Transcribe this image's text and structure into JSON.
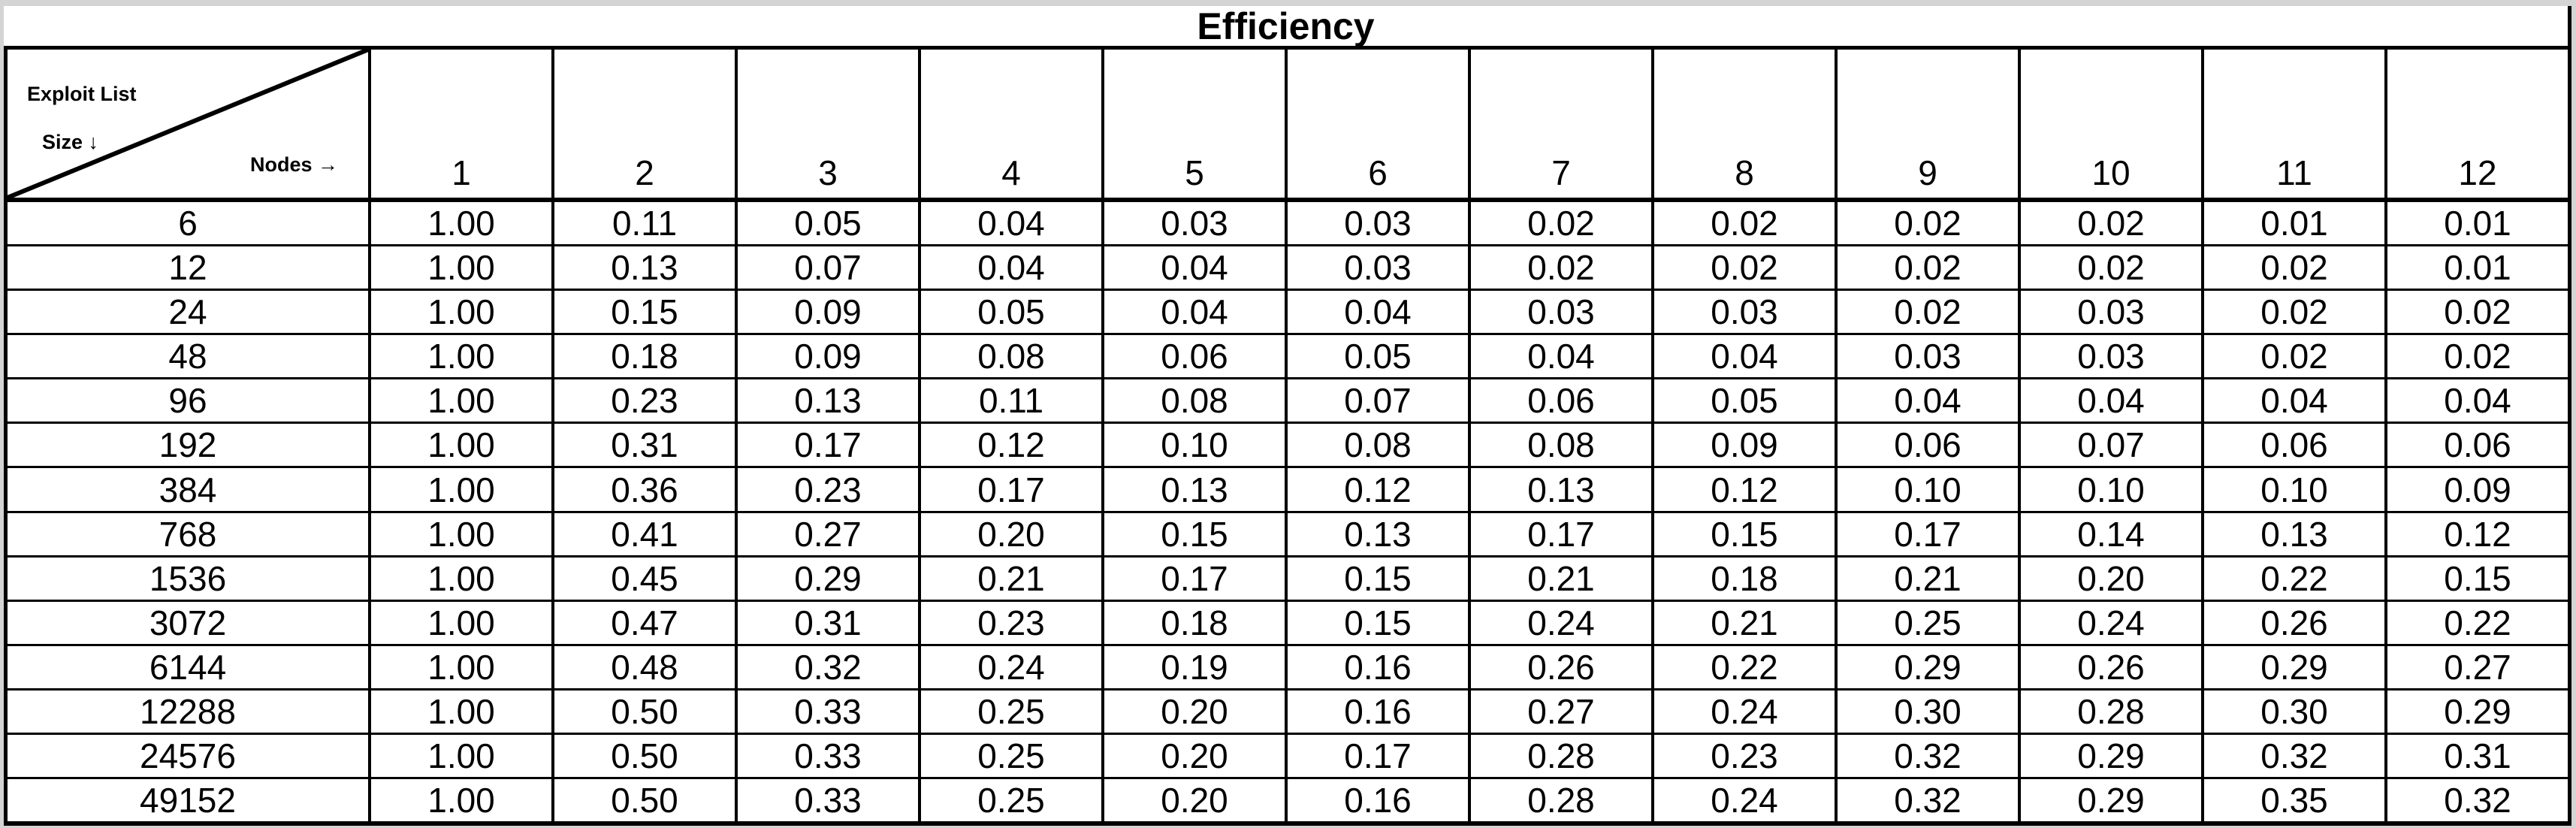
{
  "chart_data": {
    "type": "table",
    "title": "Efficiency",
    "corner": {
      "row_axis_line1": "Exploit List",
      "row_axis_line2": "Size ↓",
      "col_axis": "Nodes →"
    },
    "columns": [
      "1",
      "2",
      "3",
      "4",
      "5",
      "6",
      "7",
      "8",
      "9",
      "10",
      "11",
      "12"
    ],
    "row_header_meaning": "Exploit List Size",
    "row_labels": [
      "6",
      "12",
      "24",
      "48",
      "96",
      "192",
      "384",
      "768",
      "1536",
      "3072",
      "6144",
      "12288",
      "24576",
      "49152"
    ],
    "rows": [
      [
        "1.00",
        "0.11",
        "0.05",
        "0.04",
        "0.03",
        "0.03",
        "0.02",
        "0.02",
        "0.02",
        "0.02",
        "0.01",
        "0.01"
      ],
      [
        "1.00",
        "0.13",
        "0.07",
        "0.04",
        "0.04",
        "0.03",
        "0.02",
        "0.02",
        "0.02",
        "0.02",
        "0.02",
        "0.01"
      ],
      [
        "1.00",
        "0.15",
        "0.09",
        "0.05",
        "0.04",
        "0.04",
        "0.03",
        "0.03",
        "0.02",
        "0.03",
        "0.02",
        "0.02"
      ],
      [
        "1.00",
        "0.18",
        "0.09",
        "0.08",
        "0.06",
        "0.05",
        "0.04",
        "0.04",
        "0.03",
        "0.03",
        "0.02",
        "0.02"
      ],
      [
        "1.00",
        "0.23",
        "0.13",
        "0.11",
        "0.08",
        "0.07",
        "0.06",
        "0.05",
        "0.04",
        "0.04",
        "0.04",
        "0.04"
      ],
      [
        "1.00",
        "0.31",
        "0.17",
        "0.12",
        "0.10",
        "0.08",
        "0.08",
        "0.09",
        "0.06",
        "0.07",
        "0.06",
        "0.06"
      ],
      [
        "1.00",
        "0.36",
        "0.23",
        "0.17",
        "0.13",
        "0.12",
        "0.13",
        "0.12",
        "0.10",
        "0.10",
        "0.10",
        "0.09"
      ],
      [
        "1.00",
        "0.41",
        "0.27",
        "0.20",
        "0.15",
        "0.13",
        "0.17",
        "0.15",
        "0.17",
        "0.14",
        "0.13",
        "0.12"
      ],
      [
        "1.00",
        "0.45",
        "0.29",
        "0.21",
        "0.17",
        "0.15",
        "0.21",
        "0.18",
        "0.21",
        "0.20",
        "0.22",
        "0.15"
      ],
      [
        "1.00",
        "0.47",
        "0.31",
        "0.23",
        "0.18",
        "0.15",
        "0.24",
        "0.21",
        "0.25",
        "0.24",
        "0.26",
        "0.22"
      ],
      [
        "1.00",
        "0.48",
        "0.32",
        "0.24",
        "0.19",
        "0.16",
        "0.26",
        "0.22",
        "0.29",
        "0.26",
        "0.29",
        "0.27"
      ],
      [
        "1.00",
        "0.50",
        "0.33",
        "0.25",
        "0.20",
        "0.16",
        "0.27",
        "0.24",
        "0.30",
        "0.28",
        "0.30",
        "0.29"
      ],
      [
        "1.00",
        "0.50",
        "0.33",
        "0.25",
        "0.20",
        "0.17",
        "0.28",
        "0.23",
        "0.32",
        "0.29",
        "0.32",
        "0.31"
      ],
      [
        "1.00",
        "0.50",
        "0.33",
        "0.25",
        "0.20",
        "0.16",
        "0.28",
        "0.24",
        "0.32",
        "0.29",
        "0.35",
        "0.32"
      ]
    ]
  },
  "colors": {
    "border": "#000000",
    "background": "#ffffff",
    "page_edge": "#d4d4d4",
    "text": "#000000"
  }
}
